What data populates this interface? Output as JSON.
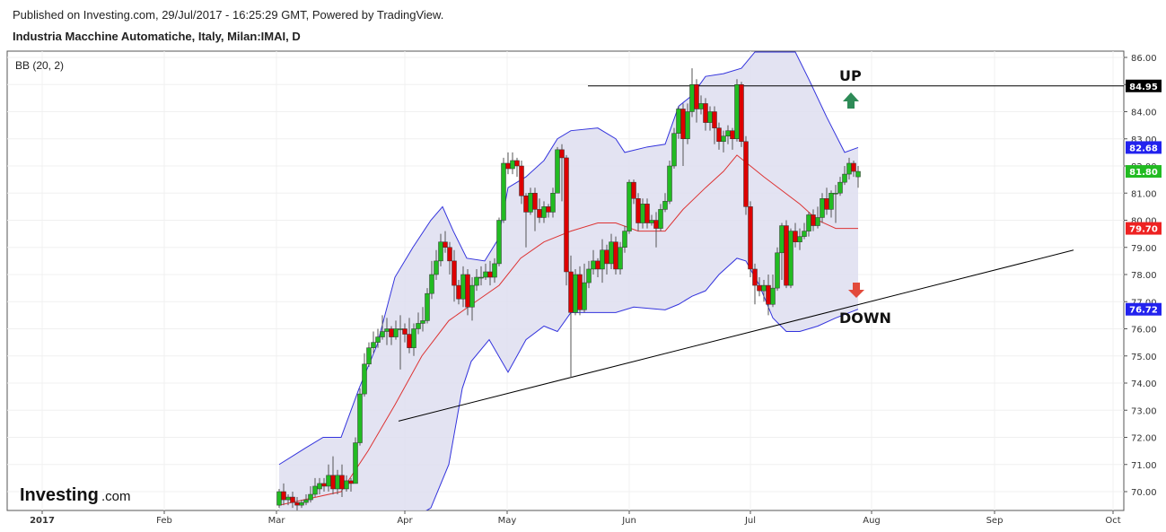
{
  "header": {
    "published": "Published on Investing.com, 29/Jul/2017 - 16:25:29 GMT, Powered by TradingView.",
    "symbol": "Industria Macchine Automatiche, Italy, Milan:IMAI, D"
  },
  "indicator_label": "BB (20, 2)",
  "logo": {
    "main": "Investing",
    "suffix": ".com"
  },
  "annotations": {
    "up": "UP",
    "down": "DOWN"
  },
  "colors": {
    "up_candle": "#22bb22",
    "down_candle": "#dd0000",
    "band_line": "#3333dd",
    "band_fill": "#dedef0",
    "middle_line": "#dd3333",
    "badge_black": "#000000",
    "badge_blue": "#2222ee",
    "badge_green": "#22bb22",
    "badge_red": "#ee2222",
    "arrow_up": "#2e8b57",
    "arrow_down": "#e24a3b"
  },
  "chart_data": {
    "type": "candlestick",
    "x_ticks": [
      "2017",
      "Feb",
      "Mar",
      "Apr",
      "May",
      "Jun",
      "Jul",
      "Aug",
      "Sep",
      "Oct"
    ],
    "y_ticks": [
      "70.00",
      "71.00",
      "72.00",
      "73.00",
      "74.00",
      "75.00",
      "76.00",
      "77.00",
      "78.00",
      "79.00",
      "80.00",
      "81.00",
      "82.00",
      "83.00",
      "84.00",
      "85.00",
      "86.00"
    ],
    "ylim": [
      69.3,
      86.2
    ],
    "price_labels": [
      {
        "value": 84.95,
        "text": "84.95",
        "kind": "line"
      },
      {
        "value": 82.68,
        "text": "82.68",
        "kind": "upper_band"
      },
      {
        "value": 81.8,
        "text": "81.80",
        "kind": "last_price"
      },
      {
        "value": 79.7,
        "text": "79.70",
        "kind": "middle_band"
      },
      {
        "value": 76.72,
        "text": "76.72",
        "kind": "lower_band"
      }
    ],
    "candles": [
      [
        311,
        69.5,
        70.0,
        69.4,
        70.1
      ],
      [
        316,
        70.0,
        69.7,
        69.5,
        70.3
      ],
      [
        321,
        69.7,
        69.8,
        69.5,
        69.9
      ],
      [
        326,
        69.8,
        69.6,
        69.4,
        70.0
      ],
      [
        331,
        69.6,
        69.5,
        69.3,
        69.8
      ],
      [
        336,
        69.5,
        69.6,
        69.4,
        69.7
      ],
      [
        341,
        69.6,
        69.7,
        69.5,
        69.9
      ],
      [
        346,
        69.7,
        69.9,
        69.6,
        70.2
      ],
      [
        351,
        69.9,
        70.2,
        69.8,
        70.5
      ],
      [
        356,
        70.1,
        70.3,
        69.9,
        70.5
      ],
      [
        361,
        70.3,
        70.2,
        70.0,
        70.5
      ],
      [
        366,
        70.2,
        70.6,
        70.0,
        71.0
      ],
      [
        371,
        70.6,
        70.1,
        69.9,
        71.3
      ],
      [
        376,
        70.1,
        70.6,
        69.9,
        70.8
      ],
      [
        381,
        70.6,
        70.1,
        69.8,
        71.0
      ],
      [
        386,
        70.1,
        70.4,
        70.0,
        70.6
      ],
      [
        391,
        70.4,
        70.3,
        70.0,
        70.5
      ],
      [
        396,
        70.3,
        71.8,
        70.3,
        72.0
      ],
      [
        401,
        71.8,
        73.6,
        71.7,
        73.8
      ],
      [
        406,
        73.6,
        74.7,
        73.5,
        75.1
      ],
      [
        411,
        74.7,
        75.3,
        74.6,
        75.5
      ],
      [
        416,
        75.3,
        75.5,
        75.1,
        75.9
      ],
      [
        421,
        75.5,
        75.7,
        75.3,
        76.0
      ],
      [
        426,
        75.7,
        75.9,
        75.6,
        76.5
      ],
      [
        431,
        75.9,
        76.0,
        75.4,
        76.4
      ],
      [
        436,
        76.0,
        75.7,
        75.4,
        76.1
      ],
      [
        441,
        75.7,
        76.0,
        75.6,
        76.3
      ],
      [
        446,
        76.0,
        76.0,
        74.5,
        76.5
      ],
      [
        451,
        76.0,
        75.8,
        75.5,
        76.2
      ],
      [
        456,
        75.8,
        75.3,
        75.1,
        76.4
      ],
      [
        461,
        75.3,
        76.0,
        75.0,
        76.2
      ],
      [
        466,
        76.0,
        76.2,
        75.8,
        76.6
      ],
      [
        471,
        76.2,
        76.3,
        75.9,
        76.8
      ],
      [
        476,
        76.3,
        77.3,
        76.2,
        77.5
      ],
      [
        481,
        77.3,
        78.0,
        77.1,
        78.5
      ],
      [
        486,
        78.0,
        78.5,
        77.8,
        78.9
      ],
      [
        491,
        78.5,
        79.2,
        78.3,
        79.5
      ],
      [
        496,
        79.2,
        79.0,
        78.8,
        79.6
      ],
      [
        501,
        79.0,
        78.5,
        78.0,
        79.2
      ],
      [
        506,
        78.5,
        77.6,
        77.0,
        78.9
      ],
      [
        511,
        77.6,
        77.1,
        76.9,
        77.8
      ],
      [
        516,
        77.1,
        78.0,
        76.8,
        78.3
      ],
      [
        521,
        78.0,
        76.8,
        76.5,
        78.2
      ],
      [
        526,
        76.8,
        77.6,
        76.3,
        77.9
      ],
      [
        531,
        77.6,
        77.9,
        77.4,
        78.2
      ],
      [
        536,
        77.9,
        77.9,
        77.6,
        78.3
      ],
      [
        541,
        77.9,
        78.1,
        77.8,
        78.4
      ],
      [
        546,
        78.1,
        77.9,
        77.6,
        78.5
      ],
      [
        551,
        77.9,
        78.4,
        77.7,
        78.6
      ],
      [
        556,
        78.4,
        80.0,
        78.3,
        80.1
      ],
      [
        561,
        80.0,
        82.1,
        79.9,
        82.3
      ],
      [
        566,
        82.1,
        81.9,
        81.7,
        82.5
      ],
      [
        571,
        81.9,
        82.2,
        81.7,
        82.5
      ],
      [
        576,
        82.2,
        82.0,
        81.6,
        82.3
      ],
      [
        581,
        82.0,
        80.9,
        80.6,
        82.2
      ],
      [
        586,
        80.9,
        80.3,
        79.0,
        81.0
      ],
      [
        591,
        80.3,
        81.0,
        80.2,
        81.2
      ],
      [
        596,
        81.0,
        80.4,
        79.6,
        81.2
      ],
      [
        601,
        80.4,
        80.1,
        79.9,
        80.8
      ],
      [
        606,
        80.1,
        80.5,
        79.9,
        80.7
      ],
      [
        611,
        80.5,
        80.3,
        80.1,
        80.6
      ],
      [
        616,
        80.3,
        81.0,
        80.1,
        81.2
      ],
      [
        621,
        81.0,
        82.6,
        81.0,
        82.7
      ],
      [
        626,
        82.6,
        82.3,
        80.7,
        82.8
      ],
      [
        631,
        82.3,
        78.1,
        77.6,
        82.4
      ],
      [
        636,
        78.1,
        76.6,
        74.2,
        78.7
      ],
      [
        641,
        76.6,
        78.0,
        76.5,
        78.2
      ],
      [
        646,
        78.0,
        76.7,
        76.5,
        78.3
      ],
      [
        651,
        76.7,
        77.7,
        76.6,
        78.4
      ],
      [
        656,
        77.7,
        78.2,
        77.5,
        78.5
      ],
      [
        661,
        78.2,
        78.5,
        78.0,
        78.9
      ],
      [
        666,
        78.5,
        78.2,
        77.9,
        78.6
      ],
      [
        671,
        78.2,
        78.9,
        77.7,
        79.3
      ],
      [
        676,
        78.9,
        78.4,
        78.0,
        79.1
      ],
      [
        681,
        78.4,
        79.2,
        78.2,
        79.5
      ],
      [
        686,
        79.2,
        78.2,
        78.0,
        79.4
      ],
      [
        691,
        78.2,
        79.0,
        78.0,
        79.2
      ],
      [
        696,
        79.0,
        79.6,
        78.8,
        79.8
      ],
      [
        701,
        79.6,
        81.4,
        79.5,
        81.5
      ],
      [
        706,
        81.4,
        80.8,
        80.6,
        81.5
      ],
      [
        711,
        80.8,
        79.9,
        79.6,
        81.0
      ],
      [
        716,
        79.9,
        80.6,
        79.7,
        80.8
      ],
      [
        721,
        80.6,
        79.9,
        79.7,
        80.8
      ],
      [
        726,
        79.9,
        80.0,
        79.8,
        80.2
      ],
      [
        731,
        80.0,
        79.7,
        79.0,
        80.3
      ],
      [
        736,
        79.7,
        80.4,
        79.6,
        80.6
      ],
      [
        741,
        80.4,
        80.7,
        80.3,
        81.0
      ],
      [
        746,
        80.7,
        82.0,
        80.6,
        82.2
      ],
      [
        751,
        82.0,
        83.2,
        81.9,
        83.4
      ],
      [
        756,
        83.2,
        84.1,
        83.0,
        84.2
      ],
      [
        761,
        84.1,
        83.0,
        82.0,
        84.3
      ],
      [
        766,
        83.0,
        84.0,
        82.8,
        84.3
      ],
      [
        771,
        84.0,
        85.0,
        83.8,
        85.6
      ],
      [
        776,
        85.0,
        84.1,
        83.6,
        85.2
      ],
      [
        781,
        84.1,
        84.3,
        83.9,
        84.6
      ],
      [
        786,
        84.3,
        83.6,
        83.3,
        84.5
      ],
      [
        791,
        83.6,
        84.0,
        83.3,
        84.2
      ],
      [
        796,
        84.0,
        83.4,
        82.8,
        84.2
      ],
      [
        801,
        83.4,
        82.9,
        82.6,
        83.6
      ],
      [
        806,
        82.9,
        83.1,
        82.5,
        83.3
      ],
      [
        811,
        83.1,
        83.3,
        82.8,
        83.5
      ],
      [
        816,
        83.3,
        83.0,
        82.6,
        83.4
      ],
      [
        821,
        83.0,
        85.0,
        82.9,
        85.2
      ],
      [
        826,
        85.0,
        82.9,
        82.7,
        85.1
      ],
      [
        831,
        82.9,
        80.5,
        80.2,
        83.1
      ],
      [
        836,
        80.5,
        78.2,
        77.9,
        80.7
      ],
      [
        841,
        78.2,
        77.6,
        76.9,
        78.4
      ],
      [
        846,
        77.6,
        77.4,
        77.2,
        77.9
      ],
      [
        851,
        77.4,
        77.6,
        77.0,
        77.8
      ],
      [
        856,
        77.6,
        76.9,
        76.5,
        78.0
      ],
      [
        861,
        76.9,
        77.5,
        76.8,
        78.0
      ],
      [
        866,
        77.5,
        78.8,
        77.4,
        79.0
      ],
      [
        871,
        78.8,
        79.8,
        77.8,
        79.9
      ],
      [
        876,
        79.8,
        77.6,
        77.5,
        80.0
      ],
      [
        881,
        77.6,
        79.6,
        77.5,
        79.7
      ],
      [
        886,
        79.6,
        79.2,
        79.0,
        79.9
      ],
      [
        891,
        79.2,
        79.4,
        78.9,
        79.7
      ],
      [
        896,
        79.4,
        79.6,
        79.3,
        79.9
      ],
      [
        901,
        79.6,
        80.2,
        79.4,
        80.3
      ],
      [
        906,
        80.2,
        79.8,
        79.6,
        80.4
      ],
      [
        911,
        79.8,
        80.1,
        79.7,
        80.5
      ],
      [
        916,
        80.1,
        80.8,
        79.9,
        81.0
      ],
      [
        921,
        80.8,
        80.4,
        80.2,
        81.2
      ],
      [
        926,
        80.4,
        81.0,
        80.1,
        81.1
      ],
      [
        931,
        81.0,
        81.0,
        79.9,
        81.3
      ],
      [
        936,
        81.0,
        81.4,
        80.9,
        81.6
      ],
      [
        941,
        81.4,
        81.7,
        81.3,
        82.0
      ],
      [
        946,
        81.7,
        82.1,
        81.5,
        82.3
      ],
      [
        951,
        82.1,
        81.8,
        81.6,
        82.2
      ],
      [
        956,
        81.6,
        81.8,
        81.2,
        82.0
      ]
    ],
    "bands": {
      "upper": [
        [
          311,
          71.0
        ],
        [
          340,
          71.6
        ],
        [
          360,
          72.0
        ],
        [
          380,
          72.0
        ],
        [
          400,
          73.8
        ],
        [
          420,
          75.4
        ],
        [
          440,
          77.9
        ],
        [
          460,
          79.0
        ],
        [
          480,
          80.0
        ],
        [
          493,
          80.5
        ],
        [
          505,
          79.6
        ],
        [
          520,
          78.6
        ],
        [
          540,
          78.5
        ],
        [
          555,
          79.3
        ],
        [
          566,
          81.2
        ],
        [
          586,
          81.6
        ],
        [
          606,
          82.2
        ],
        [
          621,
          83.0
        ],
        [
          636,
          83.3
        ],
        [
          666,
          83.4
        ],
        [
          686,
          83.0
        ],
        [
          696,
          82.5
        ],
        [
          721,
          82.7
        ],
        [
          741,
          82.8
        ],
        [
          756,
          84.2
        ],
        [
          771,
          84.6
        ],
        [
          786,
          85.3
        ],
        [
          806,
          85.4
        ],
        [
          826,
          85.6
        ],
        [
          841,
          86.2
        ],
        [
          886,
          86.2
        ],
        [
          901,
          85.2
        ],
        [
          921,
          83.8
        ],
        [
          941,
          82.5
        ],
        [
          956,
          82.68
        ]
      ],
      "middle": [
        [
          311,
          69.5
        ],
        [
          380,
          70.0
        ],
        [
          410,
          71.5
        ],
        [
          440,
          73.2
        ],
        [
          470,
          75.0
        ],
        [
          500,
          76.3
        ],
        [
          530,
          77.0
        ],
        [
          556,
          77.6
        ],
        [
          580,
          78.6
        ],
        [
          606,
          79.2
        ],
        [
          636,
          79.6
        ],
        [
          666,
          79.9
        ],
        [
          686,
          79.9
        ],
        [
          711,
          79.6
        ],
        [
          741,
          79.6
        ],
        [
          761,
          80.4
        ],
        [
          786,
          81.2
        ],
        [
          806,
          81.8
        ],
        [
          821,
          82.4
        ],
        [
          836,
          82.0
        ],
        [
          851,
          81.6
        ],
        [
          871,
          81.1
        ],
        [
          891,
          80.6
        ],
        [
          911,
          80.0
        ],
        [
          931,
          79.7
        ],
        [
          956,
          79.7
        ]
      ],
      "lower": [
        [
          311,
          68.5
        ],
        [
          380,
          68.5
        ],
        [
          410,
          68.6
        ],
        [
          440,
          68.8
        ],
        [
          460,
          69.0
        ],
        [
          480,
          69.4
        ],
        [
          500,
          71.0
        ],
        [
          515,
          73.8
        ],
        [
          525,
          74.8
        ],
        [
          545,
          75.6
        ],
        [
          566,
          74.4
        ],
        [
          586,
          75.6
        ],
        [
          606,
          76.1
        ],
        [
          621,
          75.9
        ],
        [
          636,
          76.6
        ],
        [
          666,
          76.6
        ],
        [
          686,
          76.6
        ],
        [
          706,
          76.8
        ],
        [
          741,
          76.7
        ],
        [
          756,
          76.9
        ],
        [
          771,
          77.2
        ],
        [
          786,
          77.4
        ],
        [
          801,
          78.0
        ],
        [
          821,
          78.6
        ],
        [
          831,
          78.5
        ],
        [
          846,
          77.6
        ],
        [
          861,
          76.4
        ],
        [
          876,
          75.9
        ],
        [
          891,
          75.9
        ],
        [
          911,
          76.1
        ],
        [
          931,
          76.4
        ],
        [
          956,
          76.72
        ]
      ]
    },
    "trendlines": [
      {
        "name": "resistance",
        "x1": 655,
        "y1": 84.95,
        "x2": 1252,
        "y2": 84.95
      },
      {
        "name": "support",
        "x1": 444,
        "y1": 72.6,
        "x2": 1196,
        "y2": 78.9
      }
    ]
  }
}
